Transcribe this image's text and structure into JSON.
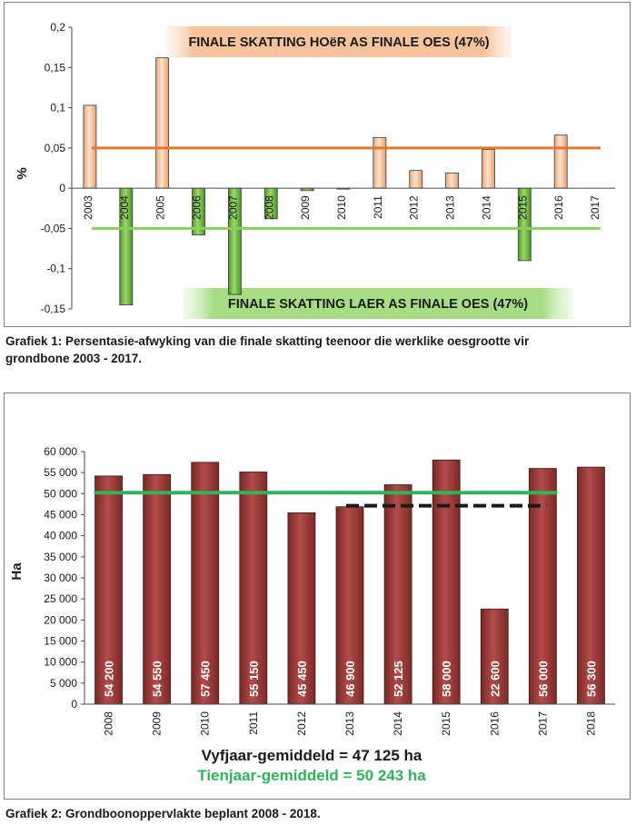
{
  "chart_data": [
    {
      "type": "bar",
      "categories": [
        "2003",
        "2004",
        "2005",
        "2006",
        "2007",
        "2008",
        "2009",
        "2010",
        "2011",
        "2012",
        "2013",
        "2014",
        "2015",
        "2016",
        "2017"
      ],
      "values": [
        0.103,
        -0.145,
        0.162,
        -0.058,
        -0.132,
        -0.038,
        -0.003,
        -0.001,
        0.063,
        0.022,
        0.019,
        0.048,
        -0.09,
        0.066,
        0
      ],
      "ylabel": "%",
      "ylim": [
        -0.15,
        0.2
      ],
      "yticks": [
        "0,2",
        "0,15",
        "0,1",
        "0,05",
        "0",
        "-0,05",
        "-0,1",
        "-0,15"
      ],
      "ytick_values": [
        0.2,
        0.15,
        0.1,
        0.05,
        0,
        -0.05,
        -0.1,
        -0.15
      ],
      "reference_lines": [
        {
          "y": 0.05,
          "color": "#e8772e"
        },
        {
          "y": -0.05,
          "color": "#8ccf5a"
        }
      ],
      "annotations": [
        {
          "text": "FINALE SKATTING HOëR AS FINALE OES  (47%)"
        },
        {
          "text": "FINALE SKATTING LAER AS FINALE OES  (47%)"
        }
      ],
      "colors": {
        "positive": "#f7c9a0",
        "negative": "#6fb83f",
        "axis": "#4a4a4a"
      }
    },
    {
      "type": "bar",
      "categories": [
        "2008",
        "2009",
        "2010",
        "2011",
        "2012",
        "2013",
        "2014",
        "2015",
        "2016",
        "2017",
        "2018"
      ],
      "values": [
        54200,
        54550,
        57450,
        55150,
        45450,
        46900,
        52125,
        58000,
        22600,
        56000,
        56300
      ],
      "data_labels": [
        "54 200",
        "54 550",
        "57 450",
        "55 150",
        "45 450",
        "46 900",
        "52 125",
        "58 000",
        "22 600",
        "56 000",
        "56 300"
      ],
      "ylabel": "Ha",
      "ylim": [
        0,
        60000
      ],
      "yticks": [
        "60 000",
        "55 000",
        "50 000",
        "45 000",
        "40 000",
        "35 000",
        "30 000",
        "25 000",
        "20 000",
        "15 000",
        "10 000",
        "5 000",
        "0"
      ],
      "ytick_values": [
        60000,
        55000,
        50000,
        45000,
        40000,
        35000,
        30000,
        25000,
        20000,
        15000,
        10000,
        5000,
        0
      ],
      "averages": [
        {
          "label": "Vyfjaar-gemiddeld = 47 125 ha",
          "y": 47125,
          "from": "2013",
          "to": "2017",
          "color": "#1a1a1a"
        },
        {
          "label": "Tienjaar-gemiddeld = 50 243 ha",
          "y": 50243,
          "from": "2008",
          "to": "2017",
          "color": "#2fb457"
        }
      ],
      "colors": {
        "bar": "#9a3a38",
        "axis": "#4a4a4a"
      }
    }
  ],
  "captions": {
    "chart1": "Grafiek 1: Persentasie-afwyking van die finale skatting teenoor die werklike oesgrootte vir grondbone 2003 - 2017.",
    "chart2": "Grafiek 2: Grondboonoppervlakte beplant 2008 - 2018."
  }
}
